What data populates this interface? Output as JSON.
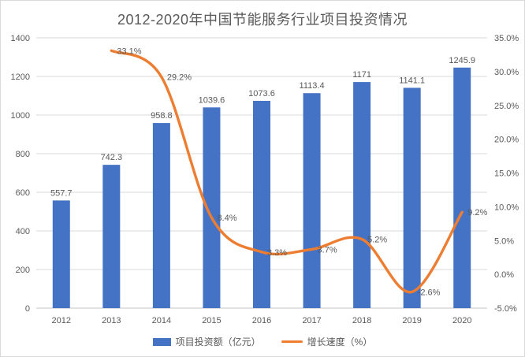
{
  "title": "2012-2020年中国节能服务行业项目投资情况",
  "colors": {
    "bar": "#4472C4",
    "line": "#ED7D31",
    "gridline": "#D9D9D9",
    "axis_line": "#C6C6C6",
    "text": "#595959"
  },
  "legend": {
    "bar_label": "项目投资额（亿元）",
    "line_label": "增长速度（%）"
  },
  "chart_data": {
    "type": "bar+line",
    "title": "2012-2020年中国节能服务行业项目投资情况",
    "categories": [
      "2012",
      "2013",
      "2014",
      "2015",
      "2016",
      "2017",
      "2018",
      "2019",
      "2020"
    ],
    "series": [
      {
        "name": "项目投资额（亿元）",
        "type": "bar",
        "axis": "left",
        "values": [
          557.7,
          742.3,
          958.8,
          1039.6,
          1073.6,
          1113.4,
          1171,
          1141.1,
          1245.9
        ],
        "labels": [
          "557.7",
          "742.3",
          "958.8",
          "1039.6",
          "1073.6",
          "1113.4",
          "1171",
          "1141.1",
          "1245.9"
        ]
      },
      {
        "name": "增长速度（%）",
        "type": "line",
        "axis": "right",
        "values": [
          null,
          33.1,
          29.2,
          8.4,
          3.3,
          3.7,
          5.2,
          -2.6,
          9.2
        ],
        "labels": [
          null,
          "33.1%",
          "29.2%",
          "8.4%",
          "3.3%",
          "3.7%",
          "5.2%",
          "-2.6%",
          "9.2%"
        ]
      }
    ],
    "left_axis": {
      "min": 0,
      "max": 1400,
      "step": 200,
      "ticks": [
        "0",
        "200",
        "400",
        "600",
        "800",
        "1000",
        "1200",
        "1400"
      ]
    },
    "right_axis": {
      "min": -5,
      "max": 35,
      "step": 5,
      "ticks": [
        "-5.0%",
        "0.0%",
        "5.0%",
        "10.0%",
        "15.0%",
        "20.0%",
        "25.0%",
        "30.0%",
        "35.0%"
      ]
    },
    "grid": true,
    "legend_position": "bottom"
  }
}
